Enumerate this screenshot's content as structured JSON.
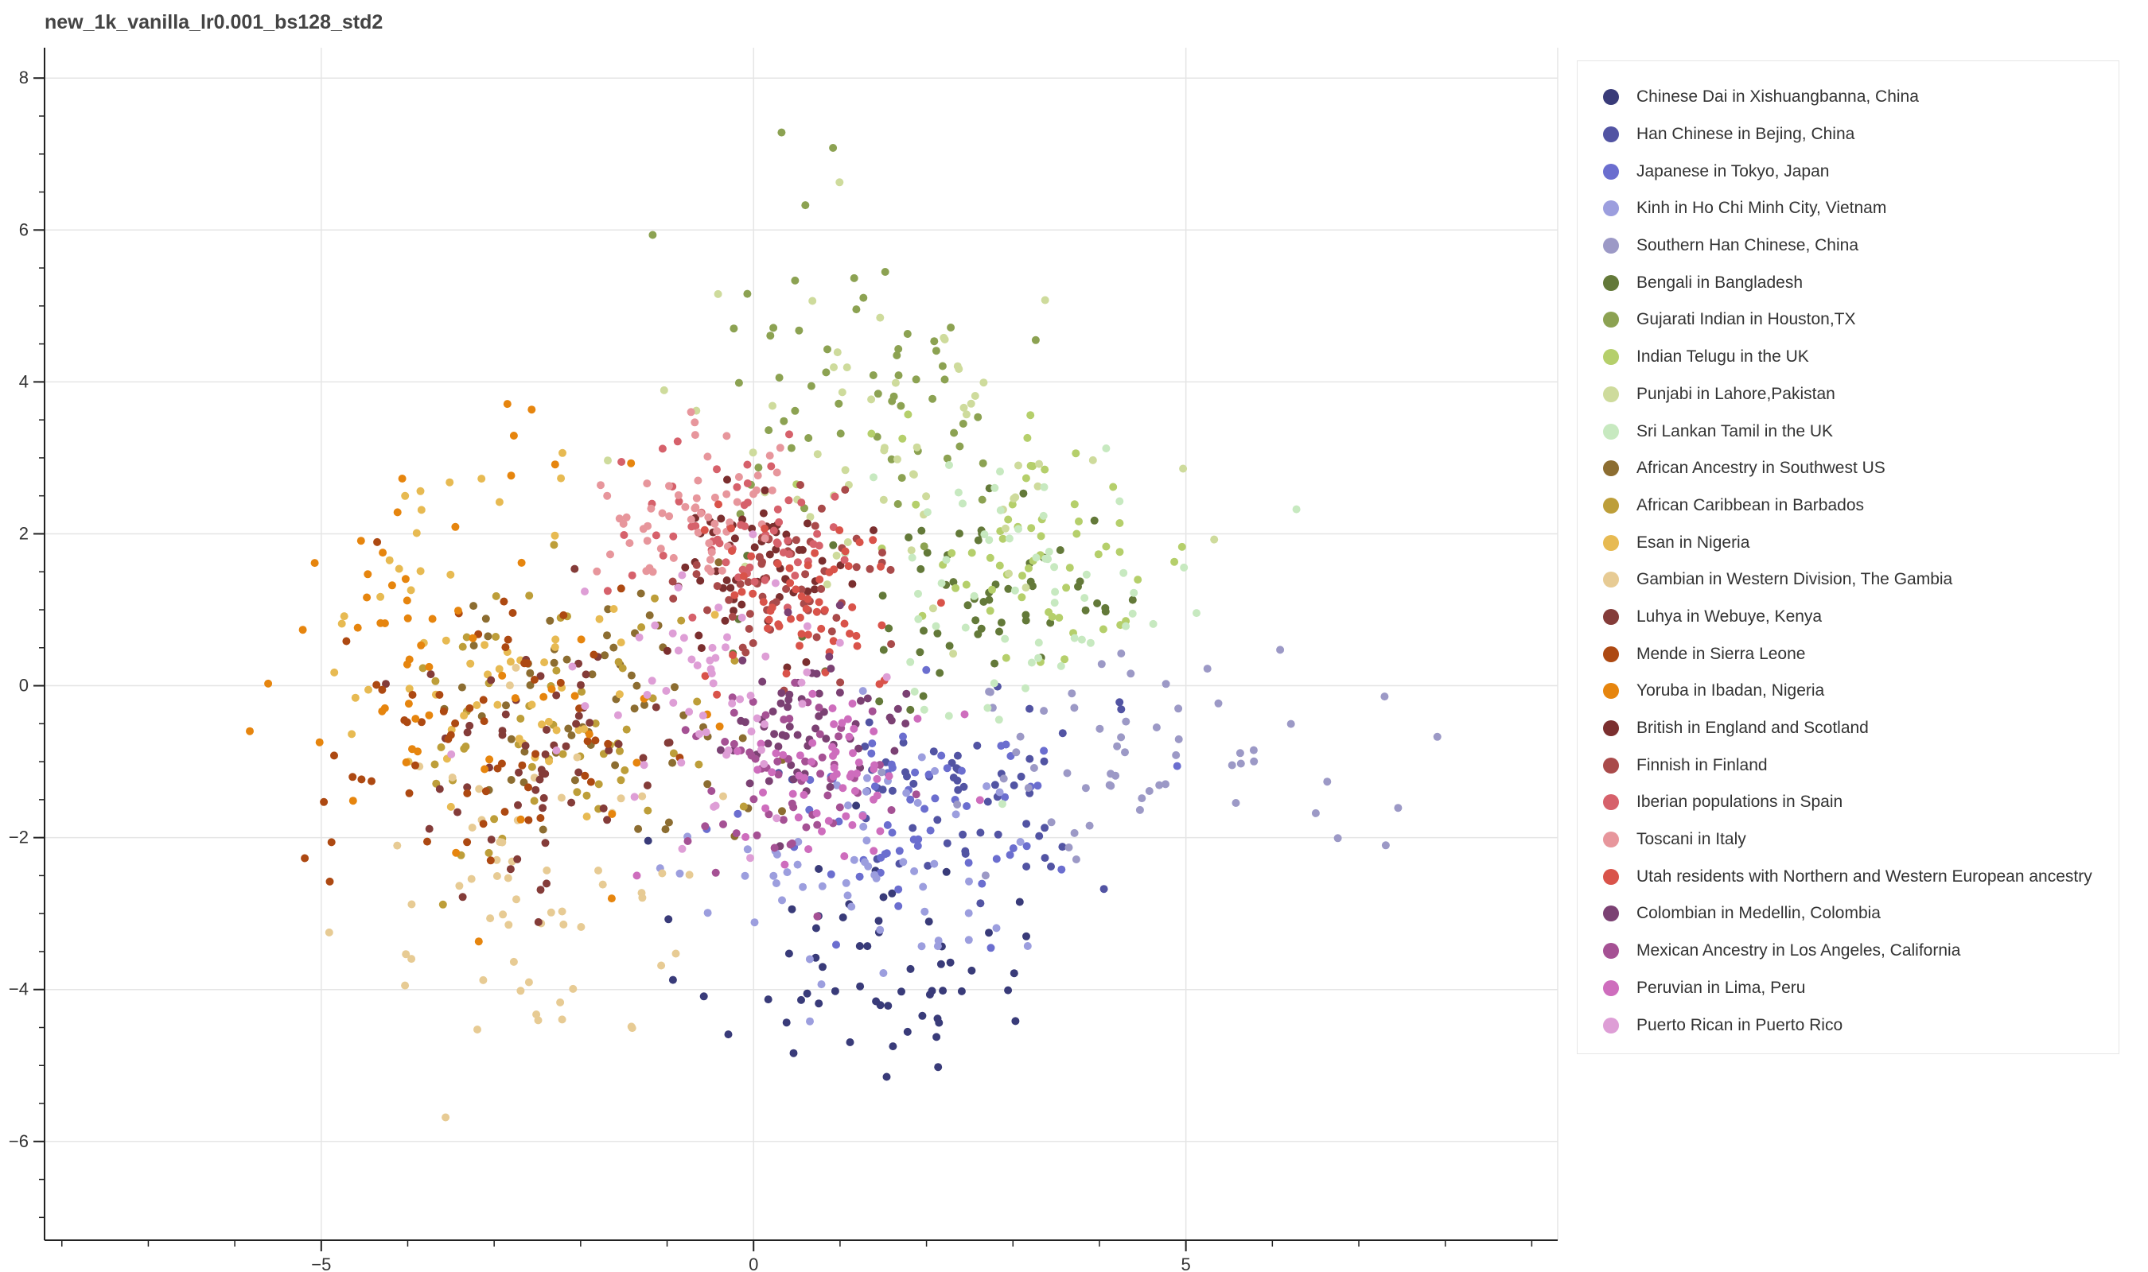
{
  "chart_data": {
    "type": "scatter",
    "title": "new_1k_vanilla_lr0.001_bs128_std2",
    "xlabel": "",
    "ylabel": "",
    "xlim": [
      -8.2,
      9.3
    ],
    "ylim": [
      -7.3,
      8.4
    ],
    "x_ticks": [
      -5,
      0,
      5
    ],
    "y_ticks": [
      -6,
      -4,
      -2,
      0,
      2,
      4,
      6,
      8
    ],
    "grid": true,
    "legend_position": "right",
    "series": [
      {
        "name": "Chinese Dai in Xishuangbanna, China",
        "color": "#393b79",
        "center": [
          1.2,
          -3.6
        ],
        "spread": [
          1.0,
          0.8
        ],
        "n": 60
      },
      {
        "name": "Han Chinese in Bejing, China",
        "color": "#5254a3",
        "center": [
          2.4,
          -1.4
        ],
        "spread": [
          0.9,
          0.7
        ],
        "n": 60
      },
      {
        "name": "Japanese in Tokyo, Japan",
        "color": "#6b6ecf",
        "center": [
          2.0,
          -1.6
        ],
        "spread": [
          0.9,
          0.7
        ],
        "n": 60
      },
      {
        "name": "Kinh in Ho Chi Minh City, Vietnam",
        "color": "#9c9ede",
        "center": [
          1.4,
          -2.5
        ],
        "spread": [
          1.0,
          0.9
        ],
        "n": 60
      },
      {
        "name": "Southern Han Chinese, China",
        "color": "#9c99c6",
        "center": [
          4.6,
          -0.9
        ],
        "spread": [
          1.3,
          0.7
        ],
        "n": 60
      },
      {
        "name": "Bengali in Bangladesh",
        "color": "#637939",
        "center": [
          2.6,
          1.1
        ],
        "spread": [
          1.1,
          0.8
        ],
        "n": 60
      },
      {
        "name": "Gujarati Indian in Houston,TX",
        "color": "#8ca252",
        "center": [
          1.4,
          4.2
        ],
        "spread": [
          1.0,
          1.1
        ],
        "n": 60
      },
      {
        "name": "Indian Telugu in the UK",
        "color": "#b5cf6b",
        "center": [
          3.2,
          1.8
        ],
        "spread": [
          1.0,
          0.8
        ],
        "n": 60
      },
      {
        "name": "Punjabi in Lahore,Pakistan",
        "color": "#cedb9c",
        "center": [
          1.8,
          3.0
        ],
        "spread": [
          1.2,
          1.2
        ],
        "n": 60
      },
      {
        "name": "Sri Lankan Tamil in the UK",
        "color": "#c7e9c0",
        "center": [
          3.1,
          1.4
        ],
        "spread": [
          1.1,
          0.9
        ],
        "n": 60
      },
      {
        "name": "African Ancestry in Southwest US",
        "color": "#8c6d31",
        "center": [
          -1.8,
          -0.4
        ],
        "spread": [
          1.0,
          0.8
        ],
        "n": 60
      },
      {
        "name": "African Caribbean in Barbados",
        "color": "#bd9e39",
        "center": [
          -2.2,
          -0.4
        ],
        "spread": [
          0.9,
          1.0
        ],
        "n": 60
      },
      {
        "name": "Esan in Nigeria",
        "color": "#e7ba52",
        "center": [
          -3.0,
          0.6
        ],
        "spread": [
          0.9,
          1.2
        ],
        "n": 60
      },
      {
        "name": "Gambian in Western Division, The Gambia",
        "color": "#e7cb94",
        "center": [
          -2.6,
          -2.6
        ],
        "spread": [
          1.0,
          1.1
        ],
        "n": 60
      },
      {
        "name": "Luhya in Webuye, Kenya",
        "color": "#843c39",
        "center": [
          -2.4,
          -1.0
        ],
        "spread": [
          0.9,
          0.9
        ],
        "n": 60
      },
      {
        "name": "Mende in Sierra Leone",
        "color": "#ad4912",
        "center": [
          -3.2,
          -0.8
        ],
        "spread": [
          0.9,
          1.1
        ],
        "n": 60
      },
      {
        "name": "Yoruba in Ibadan, Nigeria",
        "color": "#e6850e",
        "center": [
          -3.6,
          0.4
        ],
        "spread": [
          1.1,
          1.4
        ],
        "n": 60
      },
      {
        "name": "British in England and Scotland",
        "color": "#7b2f2f",
        "center": [
          0.1,
          1.6
        ],
        "spread": [
          0.5,
          0.5
        ],
        "n": 60
      },
      {
        "name": "Finnish in Finland",
        "color": "#a94a4a",
        "center": [
          0.4,
          1.3
        ],
        "spread": [
          0.6,
          0.6
        ],
        "n": 60
      },
      {
        "name": "Iberian populations in Spain",
        "color": "#d6616b",
        "center": [
          -0.2,
          2.1
        ],
        "spread": [
          0.6,
          0.5
        ],
        "n": 60
      },
      {
        "name": "Toscani in Italy",
        "color": "#e7969c",
        "center": [
          -0.6,
          2.3
        ],
        "spread": [
          0.6,
          0.5
        ],
        "n": 60
      },
      {
        "name": "Utah residents with Northern and Western European ancestry",
        "color": "#d9534a",
        "center": [
          0.6,
          1.1
        ],
        "spread": [
          0.6,
          0.6
        ],
        "n": 60
      },
      {
        "name": "Colombian in Medellin, Colombia",
        "color": "#7b4173",
        "center": [
          0.6,
          -0.6
        ],
        "spread": [
          0.6,
          0.5
        ],
        "n": 60
      },
      {
        "name": "Mexican Ancestry in Los Angeles, California",
        "color": "#a55194",
        "center": [
          0.4,
          -1.2
        ],
        "spread": [
          0.6,
          0.6
        ],
        "n": 60
      },
      {
        "name": "Peruvian in Lima, Peru",
        "color": "#ce6dbd",
        "center": [
          1.0,
          -1.1
        ],
        "spread": [
          0.6,
          0.5
        ],
        "n": 60
      },
      {
        "name": "Puerto Rican in Puerto Rico",
        "color": "#de9ed6",
        "center": [
          -0.6,
          -0.2
        ],
        "spread": [
          0.7,
          0.8
        ],
        "n": 60
      }
    ]
  }
}
